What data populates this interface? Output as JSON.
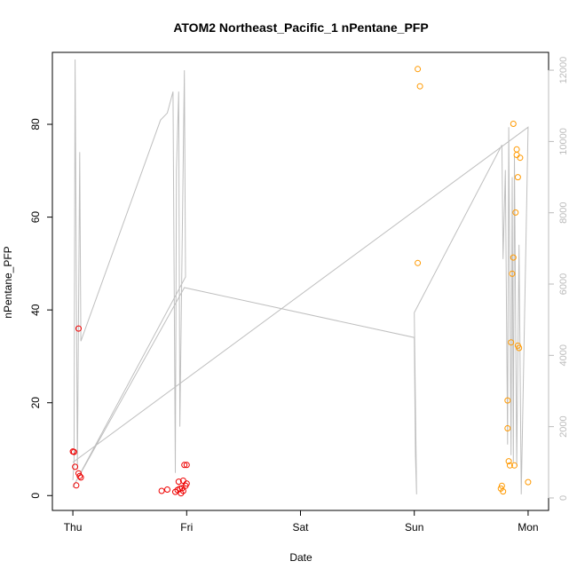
{
  "chart_data": {
    "type": "scatter",
    "title": "ATOM2 Northeast_Pacific_1 nPentane_PFP",
    "xlabel": "Date",
    "ylabel": "nPentane_PFP",
    "x_ticks": [
      "Thu",
      "Fri",
      "Sat",
      "Sun",
      "Mon"
    ],
    "x_range_days": [
      -0.18,
      4.18
    ],
    "ylim": [
      -3.2,
      95.5
    ],
    "y_ticks": [
      0,
      20,
      40,
      60,
      80
    ],
    "y2lim": [
      -350,
      12500
    ],
    "y2_ticks": [
      0,
      2000,
      4000,
      6000,
      8000,
      10000,
      12000
    ],
    "colors": {
      "red": "#ee0000",
      "orange": "#ff9900",
      "line": "#bfbfbf",
      "axis": "#000000",
      "axis2": "#bbbbbb"
    },
    "series": [
      {
        "color": "red",
        "points": [
          [
            0.0,
            9.5
          ],
          [
            0.01,
            9.4
          ],
          [
            0.02,
            6.2
          ],
          [
            0.03,
            2.2
          ],
          [
            0.05,
            36.0
          ],
          [
            0.05,
            4.8
          ],
          [
            0.06,
            4.2
          ],
          [
            0.07,
            3.9
          ],
          [
            0.78,
            1.0
          ],
          [
            0.83,
            1.3
          ],
          [
            0.9,
            0.8
          ],
          [
            0.92,
            1.2
          ],
          [
            0.93,
            3.0
          ],
          [
            0.94,
            1.5
          ],
          [
            0.95,
            0.5
          ],
          [
            0.96,
            1.6
          ],
          [
            0.97,
            1.0
          ],
          [
            0.97,
            3.2
          ],
          [
            0.98,
            6.6
          ],
          [
            0.99,
            2.1
          ],
          [
            1.0,
            6.6
          ],
          [
            1.0,
            2.6
          ]
        ]
      },
      {
        "color": "orange",
        "points": [
          [
            3.03,
            50.1
          ],
          [
            3.03,
            91.9
          ],
          [
            3.05,
            88.2
          ],
          [
            3.76,
            1.5
          ],
          [
            3.77,
            2.1
          ],
          [
            3.78,
            0.9
          ],
          [
            3.82,
            14.5
          ],
          [
            3.82,
            20.5
          ],
          [
            3.83,
            7.4
          ],
          [
            3.84,
            6.5
          ],
          [
            3.85,
            33.0
          ],
          [
            3.86,
            47.8
          ],
          [
            3.87,
            51.3
          ],
          [
            3.87,
            80.1
          ],
          [
            3.88,
            6.5
          ],
          [
            3.89,
            61.0
          ],
          [
            3.9,
            74.6
          ],
          [
            3.9,
            73.4
          ],
          [
            3.91,
            68.6
          ],
          [
            3.91,
            32.3
          ],
          [
            3.92,
            31.8
          ],
          [
            3.93,
            72.8
          ],
          [
            4.0,
            2.9
          ]
        ]
      }
    ],
    "y2_line": [
      [
        0.0,
        500
      ],
      [
        0.01,
        1000
      ],
      [
        0.02,
        12300
      ],
      [
        0.04,
        800
      ],
      [
        0.06,
        9700
      ],
      [
        0.07,
        4400
      ],
      [
        0.77,
        10600
      ],
      [
        0.83,
        10800
      ],
      [
        0.88,
        11400
      ],
      [
        0.9,
        700
      ],
      [
        0.91,
        9200
      ],
      [
        0.93,
        11400
      ],
      [
        0.94,
        2000
      ],
      [
        0.98,
        12000
      ],
      [
        0.99,
        6200
      ],
      [
        0.0,
        300
      ],
      [
        0.98,
        5900
      ],
      [
        3.0,
        4500
      ],
      [
        3.01,
        1200
      ],
      [
        3.02,
        100
      ],
      [
        3.0,
        5200
      ],
      [
        3.77,
        9900
      ],
      [
        3.78,
        6700
      ],
      [
        3.8,
        9200
      ],
      [
        3.82,
        1500
      ],
      [
        3.83,
        10400
      ],
      [
        3.85,
        1200
      ],
      [
        3.86,
        9000
      ],
      [
        3.87,
        1000
      ],
      [
        3.88,
        9600
      ],
      [
        3.9,
        900
      ],
      [
        3.92,
        7100
      ],
      [
        3.94,
        100
      ],
      [
        4.0,
        10400
      ],
      [
        0.0,
        1000
      ]
    ]
  }
}
